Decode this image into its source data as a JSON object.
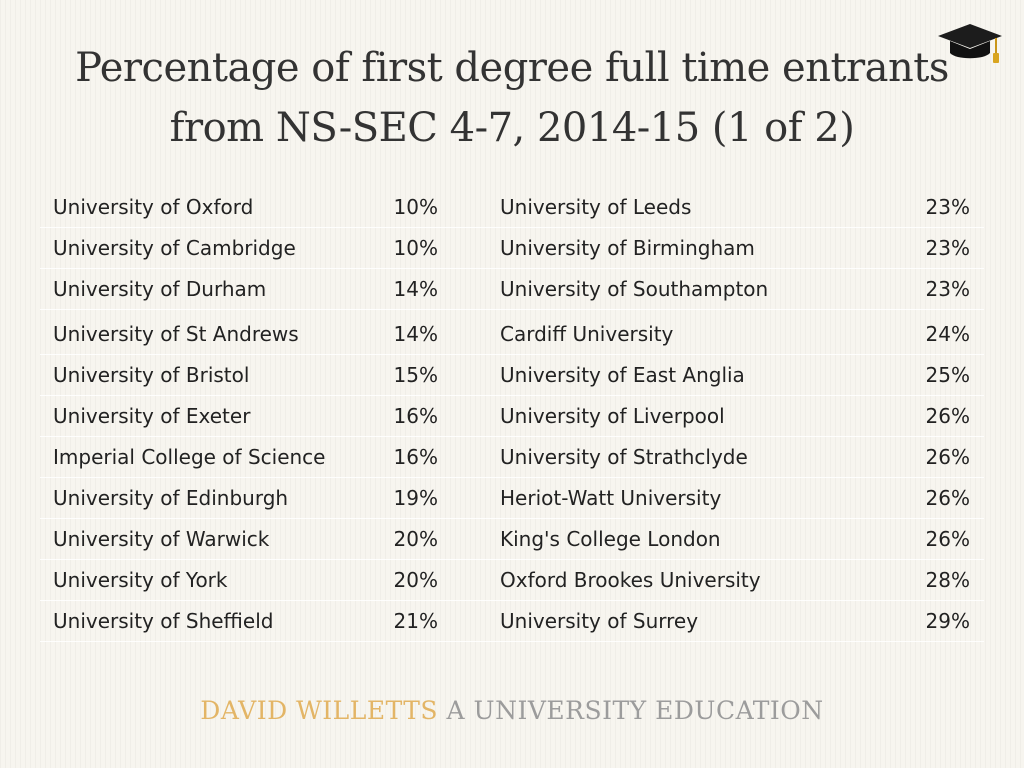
{
  "title": {
    "line1": "Percentage of first degree full time entrants",
    "line2": "from NS-SEC 4-7, 2014-15 (1 of 2)"
  },
  "icons": {
    "corner": "graduation-cap-icon"
  },
  "table": {
    "rows": [
      {
        "left_name": "University of Oxford",
        "left_pct": "10%",
        "right_name": "University of Leeds",
        "right_pct": "23%"
      },
      {
        "left_name": "University of Cambridge",
        "left_pct": "10%",
        "right_name": "University of Birmingham",
        "right_pct": "23%"
      },
      {
        "left_name": "University of Durham",
        "left_pct": "14%",
        "right_name": "University of Southampton",
        "right_pct": "23%"
      },
      {
        "left_name": "University of St Andrews",
        "left_pct": "14%",
        "right_name": "Cardiff University",
        "right_pct": "24%"
      },
      {
        "left_name": "University of Bristol",
        "left_pct": "15%",
        "right_name": "University of East Anglia",
        "right_pct": "25%"
      },
      {
        "left_name": "University of Exeter",
        "left_pct": "16%",
        "right_name": "University of Liverpool",
        "right_pct": "26%"
      },
      {
        "left_name": "Imperial College of Science",
        "left_pct": "16%",
        "right_name": "University of Strathclyde",
        "right_pct": "26%"
      },
      {
        "left_name": "University of Edinburgh",
        "left_pct": "19%",
        "right_name": "Heriot-Watt University",
        "right_pct": "26%"
      },
      {
        "left_name": "University of Warwick",
        "left_pct": "20%",
        "right_name": "King's College London",
        "right_pct": "26%"
      },
      {
        "left_name": "University of York",
        "left_pct": "20%",
        "right_name": "Oxford Brookes University",
        "right_pct": "28%"
      },
      {
        "left_name": "University of Sheffield",
        "left_pct": "21%",
        "right_name": "University of Surrey",
        "right_pct": "29%"
      }
    ]
  },
  "footer": {
    "author": "DAVID WILLETTS",
    "book": "A UNIVERSITY EDUCATION"
  },
  "colors": {
    "author": "#e3b566",
    "book": "#9c9c9c"
  }
}
